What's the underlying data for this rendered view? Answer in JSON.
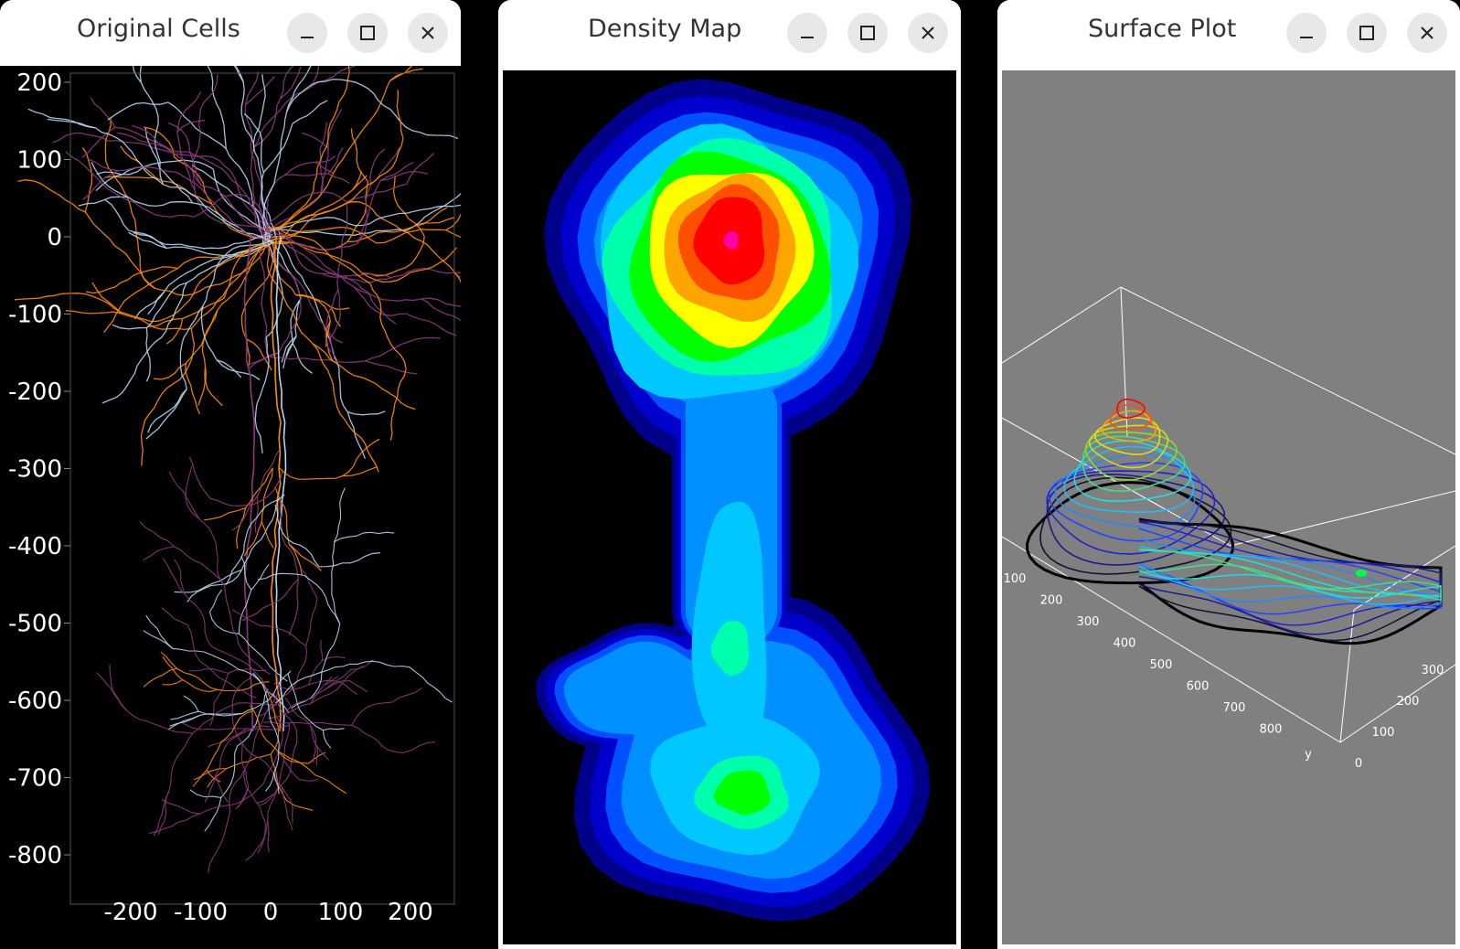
{
  "windows": [
    {
      "title": "Original Cells"
    },
    {
      "title": "Density Map"
    },
    {
      "title": "Surface Plot"
    }
  ],
  "controls": {
    "minimize": "minimize-icon",
    "maximize": "maximize-icon",
    "close": "close-icon"
  },
  "cells_plot": {
    "y_ticks": [
      "200",
      "100",
      "0",
      "-100",
      "-200",
      "-300",
      "-400",
      "-500",
      "-600",
      "-700",
      "-800"
    ],
    "x_ticks": [
      "-200",
      "-100",
      "0",
      "100",
      "200"
    ],
    "colors": {
      "orange": "#ff8c00",
      "light_blue": "#b8d4f0",
      "purple": "#8a3a7a"
    }
  },
  "density_map": {
    "colors": [
      "#00008b",
      "#0000cd",
      "#0050ff",
      "#0090ff",
      "#00c8ff",
      "#00ffaa",
      "#00ff00",
      "#ffff00",
      "#ffa500",
      "#ff5000",
      "#ff0000",
      "#ff00aa"
    ]
  },
  "surface_plot": {
    "x_labels": [
      "100",
      "200",
      "300",
      "400",
      "500",
      "600",
      "700",
      "800"
    ],
    "x_axis_label": "y",
    "z_labels": [
      "0",
      "100",
      "200",
      "300"
    ],
    "background": "#808080"
  }
}
